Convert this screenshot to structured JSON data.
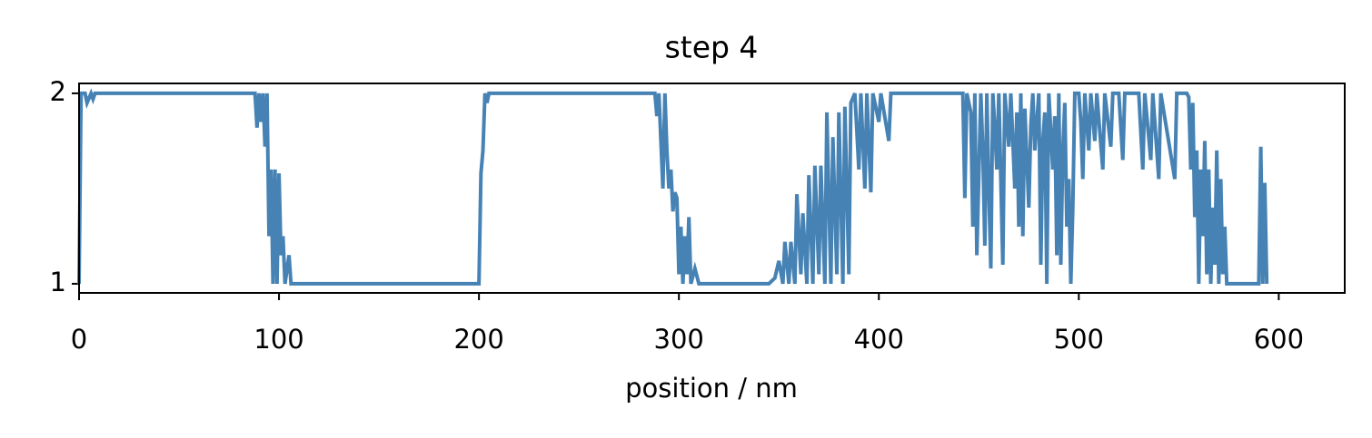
{
  "chart_data": {
    "type": "line",
    "title": "step 4",
    "x_label": "position / nm",
    "x": [
      0,
      0.5,
      1,
      3,
      4,
      6,
      7,
      8,
      88,
      89,
      90,
      91,
      92,
      93,
      94,
      95,
      96,
      97,
      98,
      99,
      100,
      101,
      102,
      103,
      105,
      106,
      200,
      201,
      202,
      203,
      204,
      205,
      288,
      289,
      290,
      292,
      293,
      294,
      295,
      296,
      297,
      298,
      299,
      300,
      301,
      302,
      303,
      304,
      305,
      306,
      308,
      310,
      345,
      348,
      350,
      352,
      353,
      355,
      356,
      358,
      359,
      361,
      362,
      364,
      365,
      367,
      368,
      370,
      371,
      373,
      374,
      376,
      377,
      379,
      380,
      382,
      383,
      385,
      386,
      388,
      390,
      391,
      393,
      394,
      396,
      397,
      400,
      401,
      405,
      406,
      442,
      443,
      444,
      446,
      447,
      448,
      449,
      451,
      452,
      453,
      454,
      455,
      456,
      457,
      458,
      459,
      460,
      462,
      463,
      465,
      466,
      468,
      469,
      470,
      471,
      472,
      473,
      475,
      476,
      477,
      478,
      480,
      481,
      482,
      483,
      484,
      485,
      487,
      488,
      489,
      490,
      491,
      492,
      493,
      494,
      495,
      496,
      497,
      498,
      500,
      501,
      502,
      503,
      505,
      506,
      508,
      509,
      512,
      513,
      516,
      517,
      520,
      522,
      523,
      530,
      532,
      533,
      536,
      537,
      540,
      541,
      548,
      549,
      554,
      555,
      556,
      557,
      558,
      559,
      560,
      561,
      562,
      563,
      564,
      565,
      566,
      567,
      568,
      569,
      570,
      571,
      572,
      573,
      574,
      576,
      578,
      590,
      591,
      592,
      593,
      594
    ],
    "series": [
      {
        "name": "step 4",
        "color": "#4682b4",
        "values": [
          1,
          1.5,
          2,
          2,
          1.95,
          2,
          1.97,
          2,
          2,
          1.82,
          2,
          1.85,
          2,
          1.72,
          2,
          1.25,
          1.6,
          1,
          1.6,
          1,
          1.58,
          1.15,
          1.25,
          1,
          1.15,
          1,
          1,
          1.58,
          1.7,
          2,
          1.95,
          2,
          2,
          1.88,
          2,
          1.5,
          2,
          1.7,
          1.5,
          1.6,
          1.38,
          1.48,
          1.45,
          1.05,
          1.3,
          1.0,
          1.25,
          1.05,
          1.35,
          1.0,
          1.08,
          1,
          1,
          1.03,
          1.12,
          1.0,
          1.22,
          1.0,
          1.22,
          1.0,
          1.47,
          1.05,
          1.37,
          1.0,
          1.57,
          1.0,
          1.62,
          1.05,
          1.62,
          1.0,
          1.9,
          1.0,
          1.77,
          1.05,
          1.9,
          1.0,
          1.93,
          1.05,
          1.95,
          2,
          1.6,
          2,
          1.5,
          2,
          1.48,
          2,
          1.85,
          2,
          1.75,
          2,
          2,
          1.45,
          2,
          1.9,
          1.3,
          2,
          1.15,
          2,
          1.7,
          1.2,
          2,
          1.5,
          1.08,
          2,
          1.82,
          1.6,
          2,
          1.1,
          2,
          1.72,
          2,
          1.5,
          1.9,
          1.3,
          2,
          1.25,
          1.92,
          1.4,
          1.83,
          2,
          1.7,
          2,
          1.1,
          1.75,
          1.9,
          1.0,
          2,
          1.6,
          1.88,
          1.15,
          2,
          1.1,
          1.7,
          1.95,
          1.3,
          1.55,
          1.0,
          1.4,
          2,
          2,
          1.85,
          1.55,
          2,
          1.7,
          2,
          1.75,
          2,
          1.6,
          2,
          1.72,
          2,
          2,
          1.65,
          2,
          2,
          1.6,
          2,
          1.65,
          2,
          1.55,
          2,
          1.55,
          2,
          2,
          1.98,
          1.6,
          1.95,
          1.35,
          1.7,
          1.0,
          1.6,
          1.25,
          1.75,
          1.05,
          1.6,
          1.0,
          1.4,
          1.1,
          1.7,
          1.0,
          1.55,
          1.05,
          1.3,
          1.0,
          1.0,
          1,
          1,
          1.72,
          1.0,
          1.53,
          1
        ]
      }
    ],
    "xlim": [
      0,
      633
    ],
    "ylim": [
      0.952,
      2.052
    ],
    "xticks": [
      0,
      100,
      200,
      300,
      400,
      500,
      600
    ],
    "yticks": [
      1,
      2
    ]
  }
}
